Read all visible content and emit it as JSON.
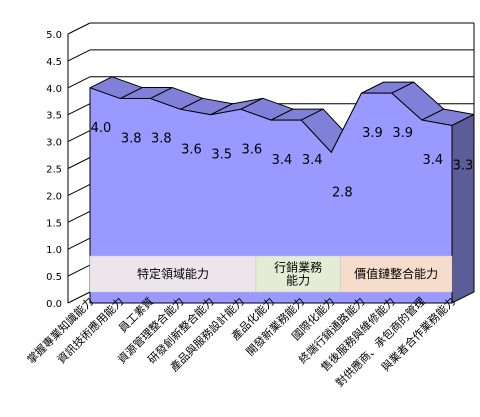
{
  "chart_data": {
    "type": "area",
    "title": "",
    "xlabel": "",
    "ylabel": "",
    "ylim": [
      0,
      5
    ],
    "y_ticks": [
      "0.0",
      "0.5",
      "1.0",
      "1.5",
      "2.0",
      "2.5",
      "3.0",
      "3.5",
      "4.0",
      "4.5",
      "5.0"
    ],
    "grid": true,
    "categories": [
      "掌握專業知識能力",
      "資訊技術應用能力",
      "員工素質",
      "資源管理整合能力",
      "研發創新整合能力",
      "產品與服務設計能力",
      "產品化能力",
      "開發新業務能力",
      "國際化能力",
      "終端行銷通路能力",
      "售後服務與維修能力",
      "對供應商、承包商的管理",
      "與業者合作業務能力"
    ],
    "values": [
      4.0,
      3.8,
      3.8,
      3.6,
      3.5,
      3.6,
      3.4,
      3.4,
      2.8,
      3.9,
      3.9,
      3.4,
      3.3
    ],
    "value_labels": [
      "4.0",
      "3.8",
      "3.8",
      "3.6",
      "3.5",
      "3.6",
      "3.4",
      "3.4",
      "2.8",
      "3.9",
      "3.9",
      "3.4",
      "3.3"
    ],
    "groups": [
      {
        "label": "特定領域能力",
        "color": "#ece6ec"
      },
      {
        "label": "行銷業務\n能力",
        "color": "#e4ecd6"
      },
      {
        "label": "價值鏈整合能力",
        "color": "#f6dccb"
      }
    ],
    "colors": {
      "area_front": "#9999ff",
      "area_top": "#8080d8",
      "area_side": "#5c5c98",
      "grid": "#000000"
    }
  }
}
